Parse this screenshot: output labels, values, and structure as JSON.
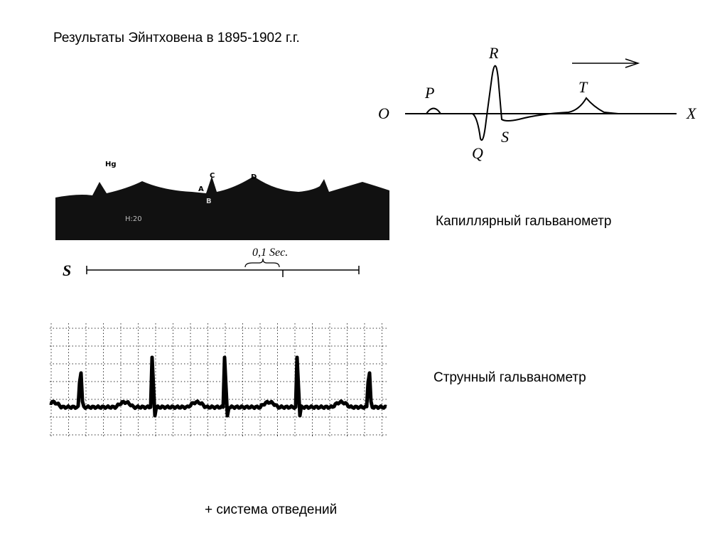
{
  "title": "Результаты Эйнтховена  в 1895-1902 г.г.",
  "capillary_diagram": {
    "labels": [
      "O",
      "X",
      "P",
      "R",
      "Q",
      "S",
      "T"
    ]
  },
  "capillary_record": {
    "labels": [
      "Hg",
      "C",
      "D",
      "A",
      "B",
      "H:20"
    ],
    "time_label": "0,1 Sec.",
    "axis_label": "S"
  },
  "capillary_caption": "Капиллярный гальванометр",
  "string_caption": "Струнный гальванометр",
  "footer": "+ система отведений"
}
